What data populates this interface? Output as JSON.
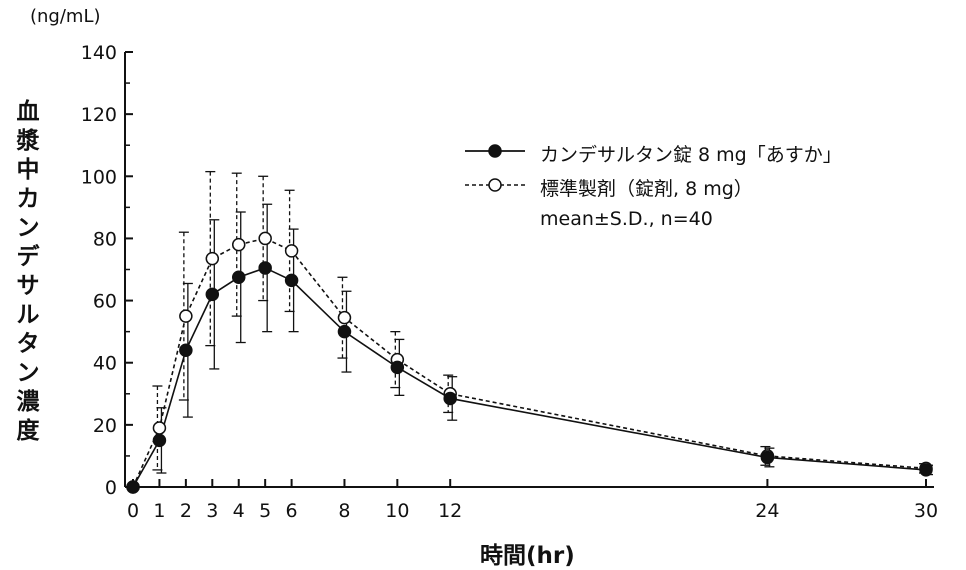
{
  "chart_data": {
    "type": "line",
    "unit_label": "(ng/mL)",
    "ylabel": "血漿中カンデサルタン濃度",
    "xlabel": "時間(hr)",
    "ylim": [
      0,
      140
    ],
    "yticks": [
      0,
      20,
      40,
      60,
      80,
      100,
      120,
      140
    ],
    "xticks": [
      0,
      1,
      2,
      3,
      4,
      5,
      6,
      8,
      10,
      12,
      24,
      30
    ],
    "xlim": [
      0,
      30
    ],
    "legend_note": "mean±S.D., n=40",
    "legend_position": "top-right",
    "series": [
      {
        "name": "カンデサルタン錠 8 mg「あすか」",
        "marker": "filled-circle",
        "line_style": "solid",
        "color": "#111111",
        "x": [
          0,
          1,
          2,
          3,
          4,
          5,
          6,
          8,
          10,
          12,
          24,
          30
        ],
        "y": [
          0,
          15,
          44,
          62,
          67.5,
          70.5,
          66.5,
          50,
          38.5,
          28.5,
          9.5,
          5.5
        ],
        "sd": [
          0,
          10.5,
          21.5,
          24,
          21,
          20.5,
          16.5,
          13,
          9,
          7,
          3,
          1.5
        ]
      },
      {
        "name": "標準製剤（錠剤, 8 mg）",
        "marker": "open-circle",
        "line_style": "dashed",
        "color": "#111111",
        "x": [
          0,
          1,
          2,
          3,
          4,
          5,
          6,
          8,
          10,
          12,
          24,
          30
        ],
        "y": [
          0,
          19,
          55,
          73.5,
          78,
          80,
          76,
          54.5,
          41,
          30,
          10,
          6
        ],
        "sd": [
          0,
          13.5,
          27,
          28,
          23,
          20,
          19.5,
          13,
          9,
          6,
          3,
          1.5
        ]
      }
    ]
  }
}
